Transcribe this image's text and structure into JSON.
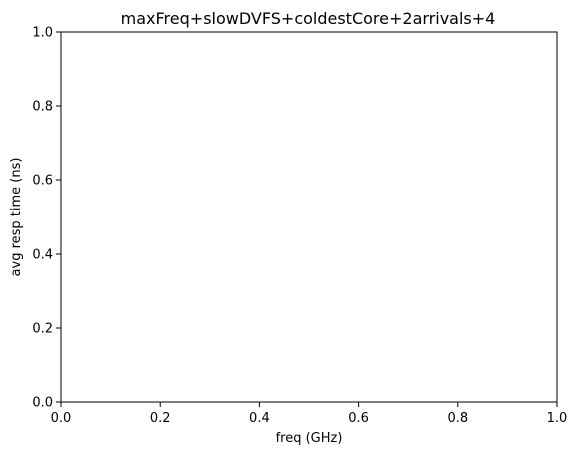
{
  "chart_data": {
    "type": "line",
    "title": "maxFreq+slowDVFS+coldestCore+2arrivals+4",
    "xlabel": "freq (GHz)",
    "ylabel": "avg resp time (ns)",
    "xlim": [
      0.0,
      1.0
    ],
    "ylim": [
      0.0,
      1.0
    ],
    "x_ticks": [
      "0.0",
      "0.2",
      "0.4",
      "0.6",
      "0.8",
      "1.0"
    ],
    "y_ticks": [
      "0.0",
      "0.2",
      "0.4",
      "0.6",
      "0.8",
      "1.0"
    ],
    "grid": false,
    "series": []
  }
}
